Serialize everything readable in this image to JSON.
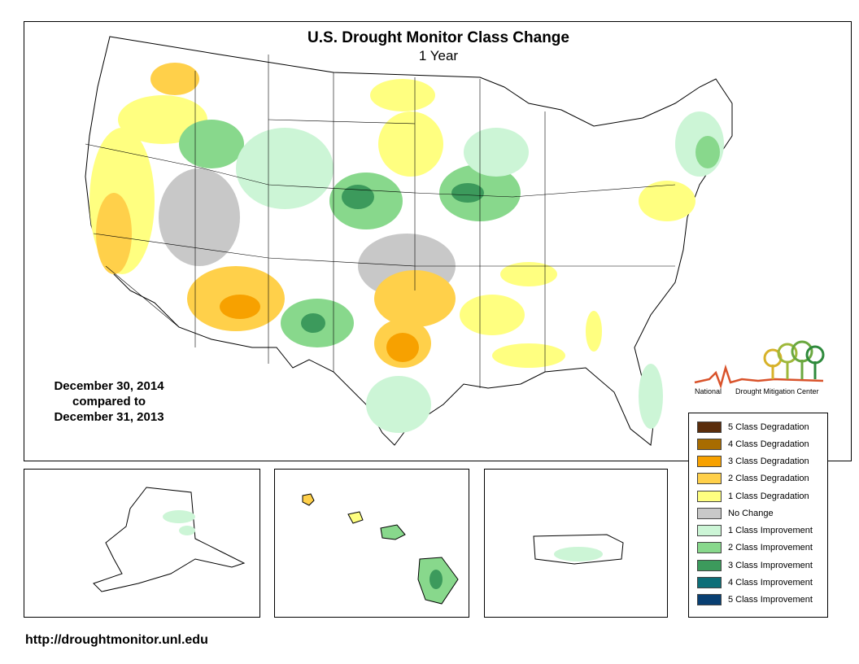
{
  "title": "U.S. Drought Monitor Class Change",
  "subtitle": "1 Year",
  "dates": {
    "line1": "December 30, 2014",
    "line2": "compared to",
    "line3": "December 31, 2013"
  },
  "url": "http://droughtmonitor.unl.edu",
  "logo": {
    "word1": "National",
    "word2": "Drought Mitigation Center"
  },
  "legend": [
    {
      "label": "5 Class Degradation",
      "color": "#5a2d0c"
    },
    {
      "label": "4 Class Degradation",
      "color": "#a86c00"
    },
    {
      "label": "3 Class Degradation",
      "color": "#f7a100"
    },
    {
      "label": "2 Class Degradation",
      "color": "#ffd04a"
    },
    {
      "label": "1 Class Degradation",
      "color": "#ffff80"
    },
    {
      "label": "No Change",
      "color": "#c8c8c8"
    },
    {
      "label": "1 Class Improvement",
      "color": "#ccf5d6"
    },
    {
      "label": "2 Class Improvement",
      "color": "#88d88c"
    },
    {
      "label": "3 Class Improvement",
      "color": "#3c9a5c"
    },
    {
      "label": "4 Class Improvement",
      "color": "#0d6e78"
    },
    {
      "label": "5 Class Improvement",
      "color": "#083f72"
    }
  ]
}
